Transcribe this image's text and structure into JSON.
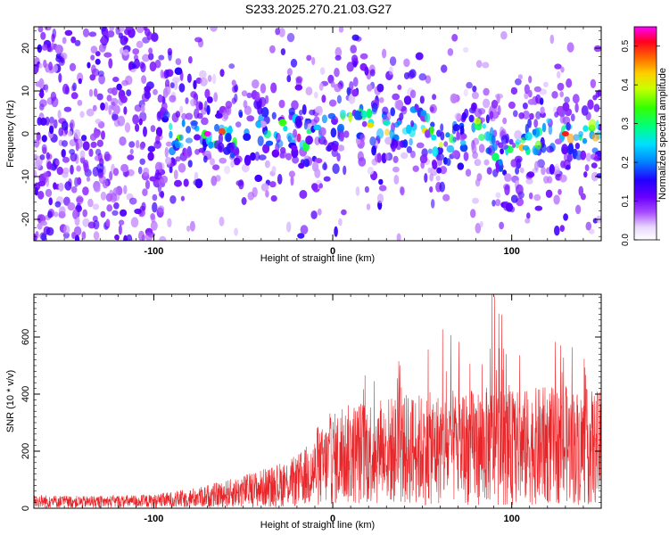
{
  "title": "S233.2025.270.21.03.G27",
  "chart_data": [
    {
      "type": "heatmap",
      "xlabel": "Height of straight line (km)",
      "ylabel": "Frequency (Hz)",
      "xlim": [
        -167,
        150
      ],
      "ylim": [
        -25,
        25
      ],
      "xticks": [
        -100,
        0,
        100
      ],
      "yticks": [
        -20,
        -10,
        0,
        10,
        20
      ],
      "colorbar": {
        "label": "Normalized spectral amplitude",
        "range": [
          0.0,
          0.55
        ],
        "ticks": [
          "0.0",
          "0.1",
          "0.2",
          "0.3",
          "0.4",
          "0.5"
        ],
        "colormap": "rainbow (white-purple-blue-cyan-green-yellow-orange-red-magenta)"
      },
      "ridge": {
        "description": "energy concentrated near 0 Hz, wandering between about -5 and +8 Hz",
        "x": [
          -110,
          -90,
          -70,
          -50,
          -30,
          -10,
          0,
          10,
          20,
          30,
          40,
          50,
          60,
          70,
          80,
          90,
          100,
          110,
          120,
          130,
          140,
          150
        ],
        "y": [
          -1,
          0,
          0,
          0,
          2,
          -2,
          2,
          6,
          4,
          2,
          0,
          3,
          -3,
          -2,
          1,
          -3,
          -5,
          -2,
          0,
          0,
          0,
          0
        ],
        "peak": {
          "x": -70,
          "y": 0,
          "value": 0.55
        }
      }
    },
    {
      "type": "line",
      "xlabel": "Height of straight line (km)",
      "ylabel": "SNR (10 * v/v)",
      "xlim": [
        -167,
        150
      ],
      "ylim": [
        0,
        750
      ],
      "xticks": [
        -100,
        0,
        100
      ],
      "yticks": [
        0,
        200,
        400,
        600
      ],
      "color": "#e8262a",
      "envelope": {
        "x": [
          -167,
          -140,
          -100,
          -80,
          -60,
          -40,
          -20,
          -10,
          0,
          10,
          20,
          40,
          60,
          80,
          90,
          100,
          120,
          140,
          150
        ],
        "mean": [
          25,
          22,
          25,
          35,
          50,
          70,
          95,
          130,
          170,
          190,
          200,
          205,
          210,
          215,
          220,
          210,
          220,
          215,
          210
        ],
        "max": [
          45,
          40,
          45,
          60,
          90,
          130,
          170,
          260,
          500,
          420,
          550,
          600,
          650,
          600,
          750,
          600,
          600,
          560,
          500
        ]
      },
      "peak": {
        "x": 89,
        "y": 750
      }
    }
  ]
}
